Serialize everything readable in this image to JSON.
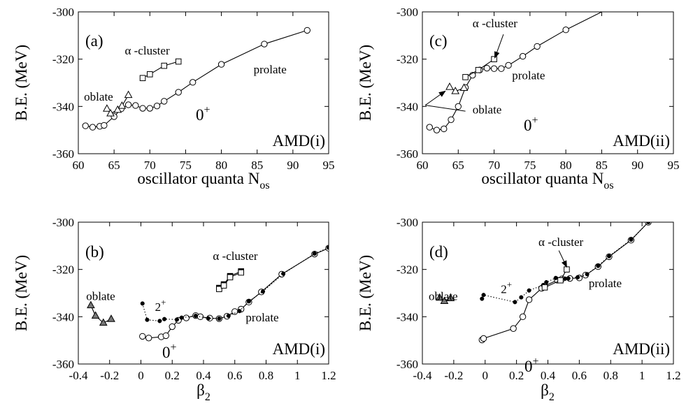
{
  "panels": [
    {
      "id": "a",
      "panel_label": "(a)",
      "model_label": "AMD(i)",
      "xlabel": "oscillator quanta N",
      "xlabel_sub": "os",
      "ylabel": "B.E.   (MeV)",
      "state_label": "0",
      "state_sup": "+",
      "texts": [
        {
          "text": "α -cluster",
          "x": 66.5,
          "y": -318.0
        },
        {
          "text": "prolate",
          "x": 84.5,
          "y": -326.0
        },
        {
          "text": "oblate",
          "x": 60.8,
          "y": -337.5
        }
      ],
      "arrows": []
    },
    {
      "id": "b",
      "panel_label": "(b)",
      "model_label": "AMD(i)",
      "xlabel": "β",
      "xlabel_sub": "2",
      "ylabel": "B.E.   (MeV)",
      "state_label": "0",
      "state_sup": "+",
      "texts": [
        {
          "text": "α -cluster",
          "x": 0.46,
          "y": -316.0
        },
        {
          "text": "prolate",
          "x": 0.67,
          "y": -342.0
        },
        {
          "text": "oblate",
          "x": -0.35,
          "y": -333.0
        },
        {
          "text": "2",
          "sup": "+",
          "x": 0.09,
          "y": -337.5
        }
      ],
      "arrows": []
    },
    {
      "id": "c",
      "panel_label": "(c)",
      "model_label": "AMD(ii)",
      "xlabel": "oscillator quanta N",
      "xlabel_sub": "os",
      "ylabel": "B.E.   (MeV)",
      "state_label": "0",
      "state_sup": "+",
      "texts": [
        {
          "text": "α -cluster",
          "x": 67.0,
          "y": -306.5
        },
        {
          "text": "prolate",
          "x": 72.5,
          "y": -328.5
        },
        {
          "text": "oblate",
          "x": 67.0,
          "y": -343.0
        }
      ],
      "arrows": [
        {
          "x1": 71.3,
          "y1": -309.5,
          "x2": 70.1,
          "y2": -319.5
        },
        {
          "x1": 66.0,
          "y1": -342.0,
          "x2": 60.4,
          "y2": -339.5
        },
        {
          "x1": 60.4,
          "y1": -339.5,
          "x2": 63.2,
          "y2": -333.5
        }
      ]
    },
    {
      "id": "d",
      "panel_label": "(d)",
      "model_label": "AMD(ii)",
      "xlabel": "β",
      "xlabel_sub": "2",
      "ylabel": "B.E.   (MeV)",
      "state_label": "0",
      "state_sup": "+",
      "texts": [
        {
          "text": "α -cluster",
          "x": 0.34,
          "y": -310.0
        },
        {
          "text": "prolate",
          "x": 0.66,
          "y": -327.5
        },
        {
          "text": "oblate",
          "x": -0.36,
          "y": -333.0
        },
        {
          "text": "2",
          "sup": "+",
          "x": 0.1,
          "y": -330.0
        }
      ],
      "arrows": [
        {
          "x1": 0.47,
          "y1": -312.0,
          "x2": 0.52,
          "y2": -319.0
        }
      ]
    }
  ],
  "chart_data": [
    {
      "id": "a",
      "type": "line",
      "xlim": [
        60,
        95
      ],
      "ylim": [
        -360,
        -300
      ],
      "xticks": [
        60,
        65,
        70,
        75,
        80,
        85,
        90,
        95
      ],
      "yticks": [
        -360,
        -340,
        -320,
        -300
      ],
      "series": [
        {
          "marker": "circle",
          "line": "solid",
          "points": [
            [
              61,
              -348.2
            ],
            [
              62,
              -348.8
            ],
            [
              63,
              -348.4
            ],
            [
              63.6,
              -348.0
            ],
            [
              65,
              -344.3
            ],
            [
              66,
              -341.0
            ],
            [
              67,
              -339.3
            ],
            [
              68,
              -339.6
            ],
            [
              69,
              -340.8
            ],
            [
              70,
              -340.8
            ],
            [
              71,
              -339.8
            ],
            [
              72,
              -337.8
            ],
            [
              74,
              -334.0
            ],
            [
              76,
              -329.8
            ],
            [
              80,
              -322.2
            ],
            [
              86,
              -313.6
            ],
            [
              92,
              -307.8
            ]
          ]
        },
        {
          "marker": "triangle",
          "line": "solid",
          "points": [
            [
              64,
              -341.0
            ],
            [
              64.5,
              -343.0
            ],
            [
              65.5,
              -341.5
            ],
            [
              66.1,
              -339.8
            ],
            [
              67,
              -335.2
            ]
          ]
        },
        {
          "marker": "square",
          "line": "solid",
          "points": [
            [
              69,
              -328.0
            ],
            [
              70,
              -326.4
            ],
            [
              72,
              -322.8
            ],
            [
              74,
              -321.0
            ]
          ]
        }
      ]
    },
    {
      "id": "b",
      "type": "line",
      "xlim": [
        -0.4,
        1.2
      ],
      "ylim": [
        -360,
        -300
      ],
      "xticks": [
        -0.4,
        -0.2,
        0,
        0.2,
        0.4,
        0.6,
        0.8,
        1,
        1.2
      ],
      "yticks": [
        -360,
        -340,
        -320,
        -300
      ],
      "series": [
        {
          "marker": "circle",
          "line": "solid",
          "points": [
            [
              0.01,
              -348.3
            ],
            [
              0.05,
              -349.0
            ],
            [
              0.13,
              -348.5
            ],
            [
              0.16,
              -348.0
            ],
            [
              0.2,
              -344.2
            ],
            [
              0.24,
              -341.5
            ],
            [
              0.29,
              -340.5
            ],
            [
              0.35,
              -339.5
            ],
            [
              0.38,
              -340.0
            ],
            [
              0.44,
              -340.6
            ],
            [
              0.5,
              -340.8
            ],
            [
              0.55,
              -339.8
            ],
            [
              0.6,
              -337.8
            ],
            [
              0.64,
              -336.8
            ],
            [
              0.69,
              -333.8
            ],
            [
              0.77,
              -329.5
            ],
            [
              0.9,
              -322.0
            ],
            [
              1.11,
              -313.5
            ],
            [
              1.2,
              -311.0
            ]
          ]
        },
        {
          "marker": "dot",
          "line": "dotted",
          "points": [
            [
              0.01,
              -334.4
            ],
            [
              0.04,
              -341.3
            ],
            [
              0.12,
              -341.8
            ],
            [
              0.15,
              -341.0
            ],
            [
              0.23,
              -341.2
            ],
            [
              0.26,
              -340.4
            ],
            [
              0.35,
              -339.6
            ],
            [
              0.43,
              -340.7
            ],
            [
              0.5,
              -340.8
            ],
            [
              0.56,
              -339.6
            ],
            [
              0.63,
              -337.6
            ],
            [
              0.69,
              -333.5
            ],
            [
              0.78,
              -329.3
            ],
            [
              0.91,
              -321.8
            ],
            [
              1.11,
              -313.3
            ],
            [
              1.2,
              -310.8
            ]
          ]
        },
        {
          "marker": "triangle",
          "line": "solid",
          "points": [
            [
              -0.32,
              -335.2
            ],
            [
              -0.29,
              -339.6
            ],
            [
              -0.24,
              -342.6
            ],
            [
              -0.19,
              -341.0
            ]
          ]
        },
        {
          "marker": "filled-square",
          "line": "solid",
          "points": [
            [
              0.5,
              -327.8
            ],
            [
              0.53,
              -326.3
            ],
            [
              0.57,
              -322.8
            ],
            [
              0.64,
              -320.8
            ]
          ]
        },
        {
          "marker": "square",
          "line": "solid",
          "points": [
            [
              0.5,
              -328.3
            ],
            [
              0.53,
              -326.8
            ],
            [
              0.57,
              -323.3
            ],
            [
              0.64,
              -321.3
            ]
          ]
        }
      ]
    },
    {
      "id": "c",
      "type": "line",
      "xlim": [
        60,
        95
      ],
      "ylim": [
        -360,
        -300
      ],
      "xticks": [
        60,
        65,
        70,
        75,
        80,
        85,
        90,
        95
      ],
      "yticks": [
        -360,
        -340,
        -320,
        -300
      ],
      "series": [
        {
          "marker": "circle",
          "line": "solid",
          "points": [
            [
              61,
              -348.8
            ],
            [
              62,
              -350.0
            ],
            [
              63,
              -349.5
            ],
            [
              64,
              -345.6
            ],
            [
              65,
              -340.0
            ],
            [
              66,
              -332.0
            ],
            [
              67,
              -326.8
            ],
            [
              68,
              -324.6
            ],
            [
              69,
              -323.8
            ],
            [
              70,
              -324.0
            ],
            [
              71,
              -324.0
            ],
            [
              72,
              -322.6
            ],
            [
              74,
              -318.8
            ],
            [
              76,
              -314.6
            ],
            [
              80,
              -307.6
            ],
            [
              86,
              -298.5
            ]
          ]
        },
        {
          "marker": "triangle",
          "line": "solid",
          "points": [
            [
              63.8,
              -331.8
            ],
            [
              64.6,
              -333.6
            ],
            [
              65.8,
              -332.2
            ]
          ]
        },
        {
          "marker": "square",
          "line": "solid",
          "points": [
            [
              66,
              -327.6
            ],
            [
              67.8,
              -324.6
            ],
            [
              70,
              -320.0
            ]
          ]
        }
      ]
    },
    {
      "id": "d",
      "type": "line",
      "xlim": [
        -0.4,
        1.2
      ],
      "ylim": [
        -360,
        -300
      ],
      "xticks": [
        -0.4,
        -0.2,
        0,
        0.2,
        0.4,
        0.6,
        0.8,
        1,
        1.2
      ],
      "yticks": [
        -360,
        -340,
        -320,
        -300
      ],
      "series": [
        {
          "marker": "circle",
          "line": "solid",
          "points": [
            [
              -0.02,
              -349.8
            ],
            [
              -0.01,
              -349.2
            ],
            [
              0.18,
              -345.0
            ],
            [
              0.24,
              -340.0
            ],
            [
              0.28,
              -332.8
            ],
            [
              0.36,
              -328.0
            ],
            [
              0.38,
              -327.0
            ],
            [
              0.46,
              -324.5
            ],
            [
              0.49,
              -324.0
            ],
            [
              0.54,
              -323.8
            ],
            [
              0.6,
              -323.6
            ],
            [
              0.64,
              -322.4
            ],
            [
              0.72,
              -318.8
            ],
            [
              0.79,
              -314.6
            ],
            [
              0.93,
              -307.6
            ],
            [
              1.04,
              -300.0
            ]
          ]
        },
        {
          "marker": "dot",
          "line": "dotted",
          "points": [
            [
              -0.02,
              -332.4
            ],
            [
              -0.01,
              -330.8
            ],
            [
              0.19,
              -333.8
            ],
            [
              0.23,
              -331.8
            ],
            [
              0.28,
              -328.9
            ],
            [
              0.37,
              -326.6
            ],
            [
              0.39,
              -325.4
            ],
            [
              0.45,
              -323.6
            ],
            [
              0.51,
              -323.9
            ],
            [
              0.53,
              -323.8
            ],
            [
              0.59,
              -323.3
            ],
            [
              0.65,
              -322.0
            ],
            [
              0.72,
              -318.5
            ],
            [
              0.79,
              -314.4
            ],
            [
              0.93,
              -307.4
            ],
            [
              1.04,
              -300.0
            ]
          ]
        },
        {
          "marker": "triangle",
          "line": "solid",
          "points": [
            [
              -0.29,
              -332.0
            ],
            [
              -0.26,
              -333.4
            ],
            [
              -0.22,
              -332.2
            ]
          ]
        },
        {
          "marker": "square",
          "line": "solid",
          "points": [
            [
              0.38,
              -327.6
            ],
            [
              0.48,
              -324.6
            ],
            [
              0.52,
              -320.0
            ]
          ]
        }
      ]
    }
  ]
}
